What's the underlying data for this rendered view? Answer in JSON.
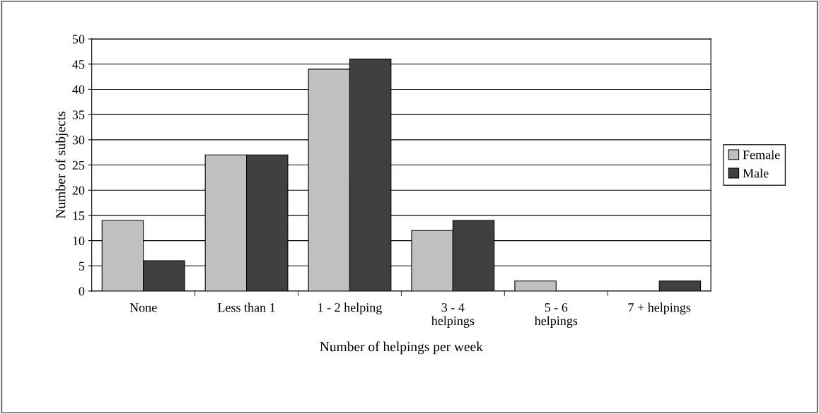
{
  "chart_data": {
    "type": "bar",
    "xlabel": "Number of helpings per week",
    "ylabel": "Number of subjects",
    "categories": [
      "None",
      "Less than 1",
      "1 - 2 helping",
      "3 - 4\nhelpings",
      "5 - 6\nhelpings",
      "7 + helpings"
    ],
    "series": [
      {
        "name": "Female",
        "color": "#c0c0c0",
        "values": [
          14,
          27,
          44,
          12,
          2,
          0
        ]
      },
      {
        "name": "Male",
        "color": "#404040",
        "values": [
          6,
          27,
          46,
          14,
          0,
          2
        ]
      }
    ],
    "ylim": [
      0,
      50
    ],
    "yticks": [
      0,
      5,
      10,
      15,
      20,
      25,
      30,
      35,
      40,
      45,
      50
    ],
    "grid": "y",
    "legend": "right"
  }
}
